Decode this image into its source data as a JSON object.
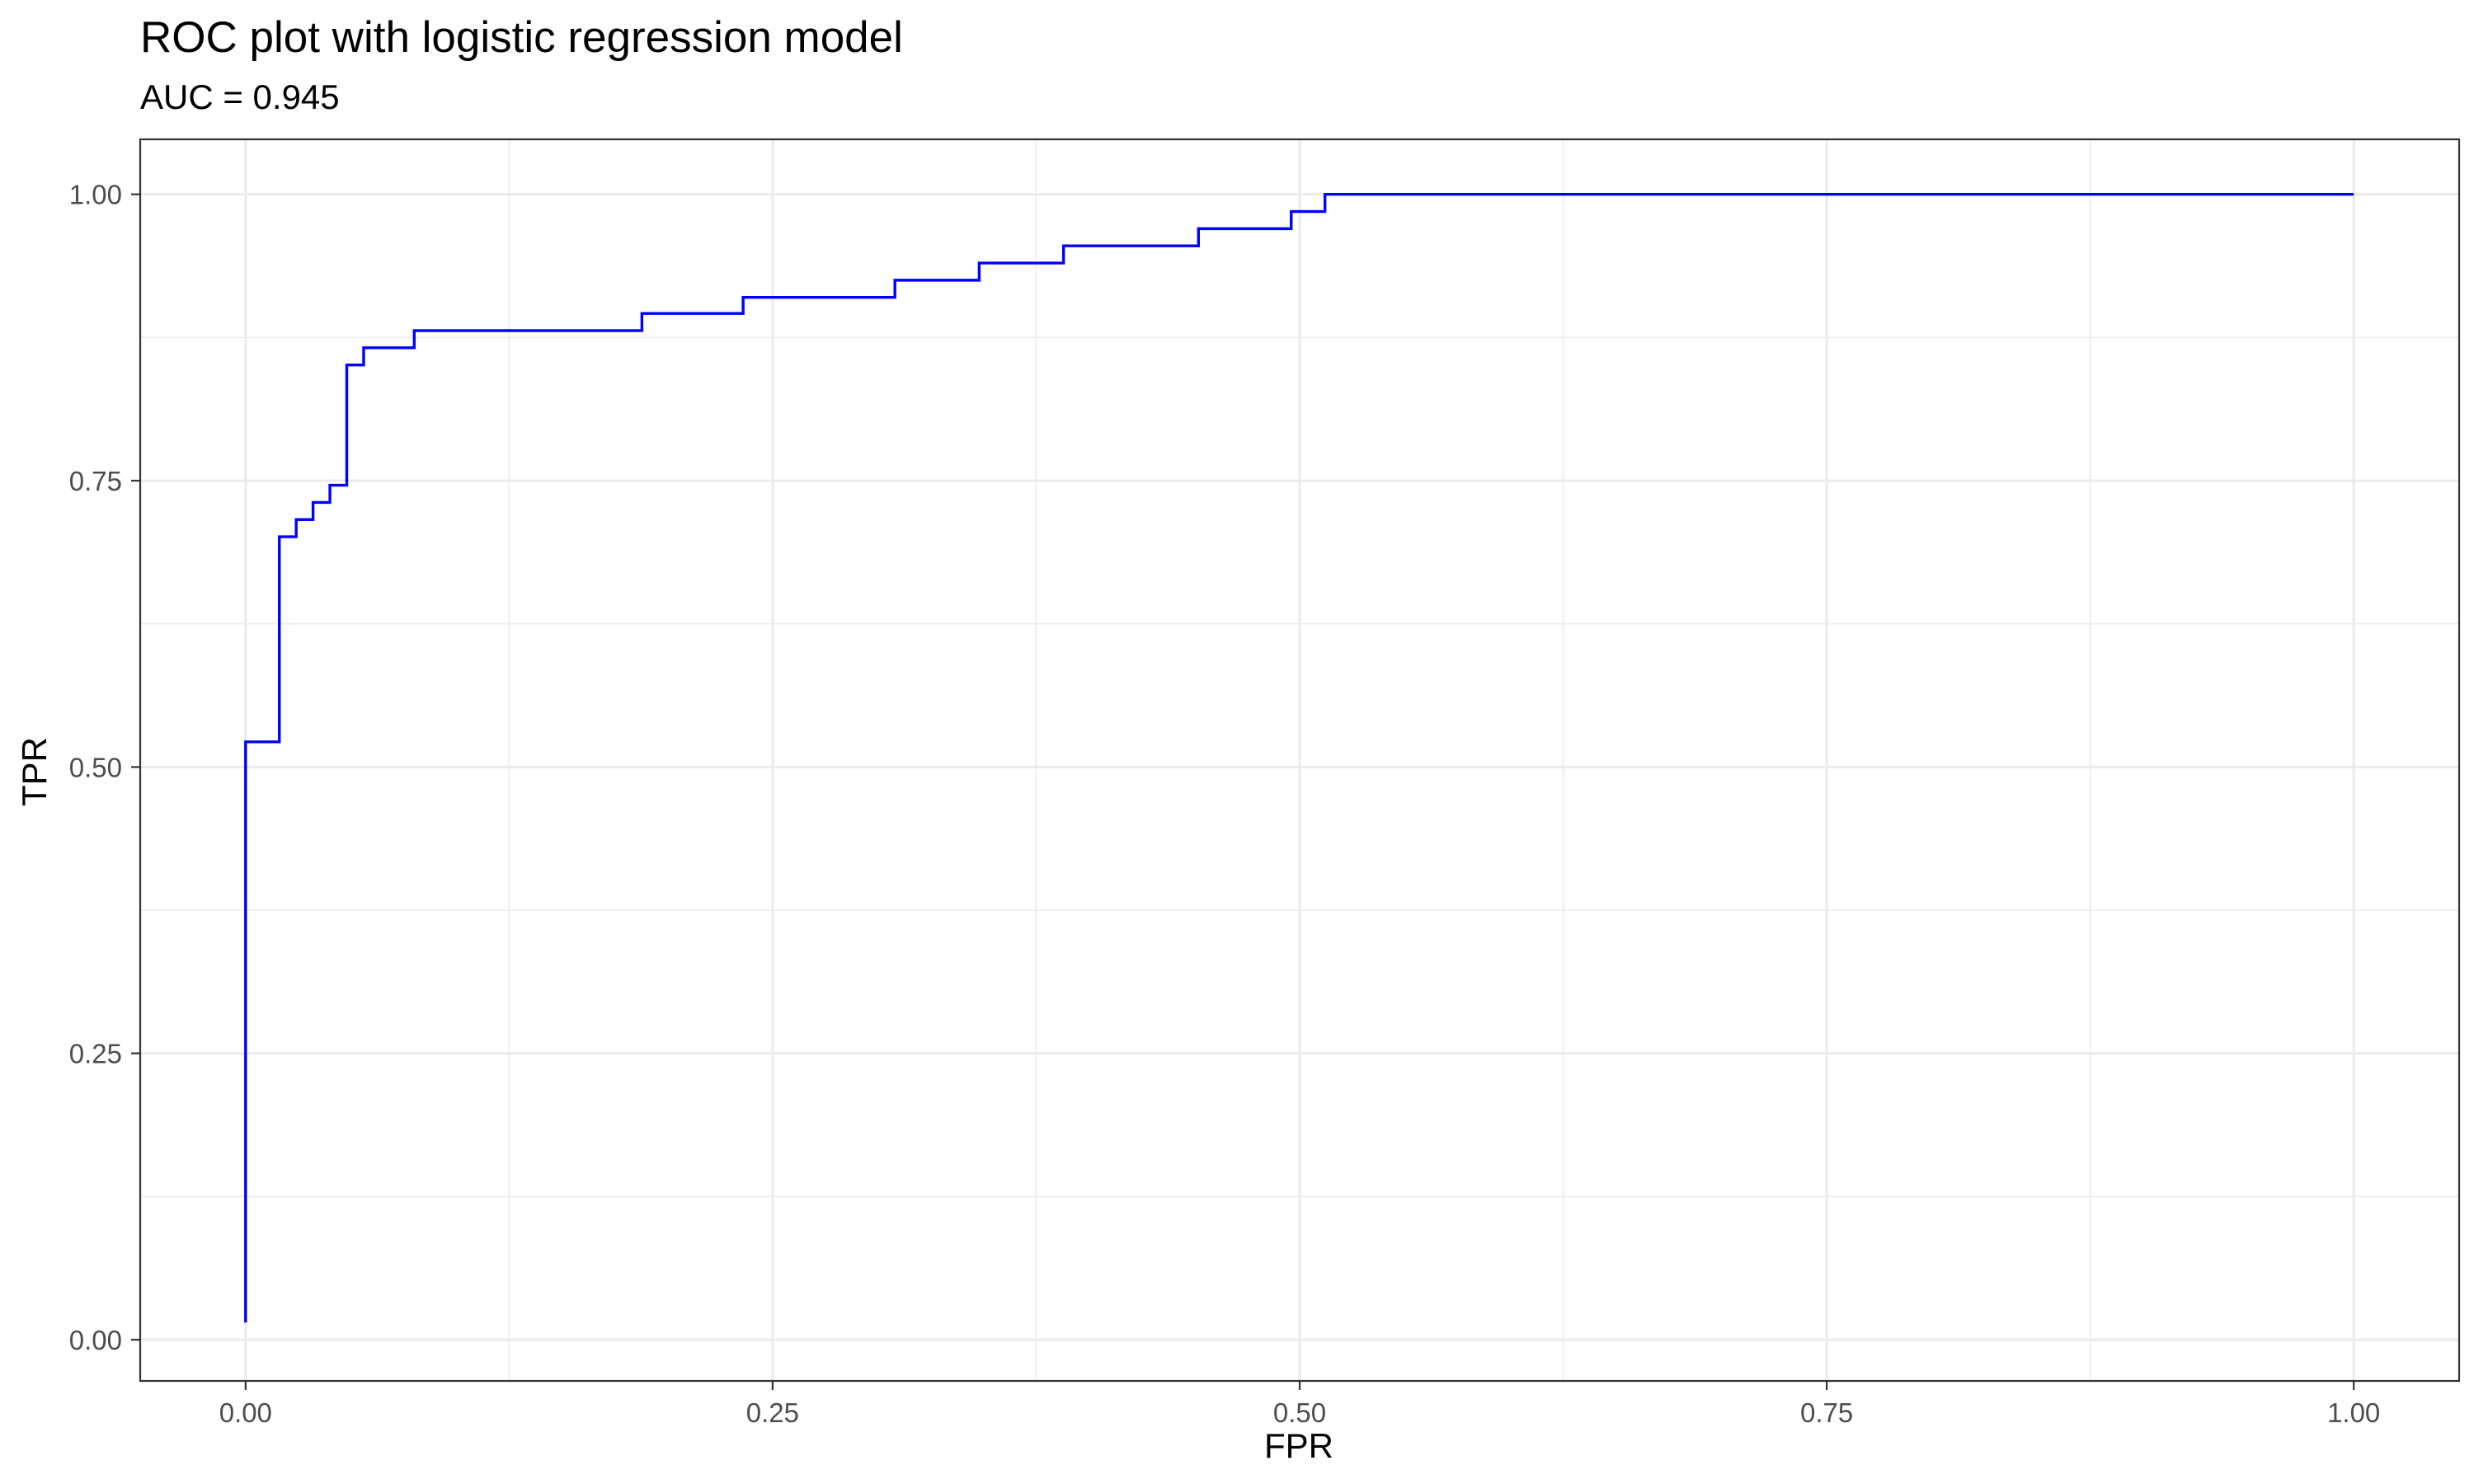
{
  "chart_data": {
    "type": "line",
    "title": "ROC plot with logistic regression model",
    "subtitle": "AUC = 0.945",
    "xlabel": "FPR",
    "ylabel": "TPR",
    "xlim": [
      -0.05,
      1.05
    ],
    "ylim": [
      -0.036,
      1.048
    ],
    "xticks": [
      0,
      0.25,
      0.5,
      0.75,
      1
    ],
    "xtick_labels": [
      "0.00",
      "0.25",
      "0.50",
      "0.75",
      "1.00"
    ],
    "yticks": [
      0,
      0.25,
      0.5,
      0.75,
      1
    ],
    "ytick_labels": [
      "0.00",
      "0.25",
      "0.50",
      "0.75",
      "1.00"
    ],
    "grid": true,
    "series": [
      {
        "step": "hv",
        "color": "#0000ff",
        "x": [
          0,
          0,
          0.016,
          0.016,
          0.024,
          0.032,
          0.04,
          0.048,
          0.056,
          0.08,
          0.188,
          0.236,
          0.308,
          0.348,
          0.388,
          0.452,
          0.496,
          0.512,
          1.0
        ],
        "y": [
          0.015,
          0.522,
          0.522,
          0.701,
          0.716,
          0.731,
          0.746,
          0.851,
          0.866,
          0.881,
          0.896,
          0.91,
          0.925,
          0.94,
          0.955,
          0.97,
          0.985,
          1.0,
          1.0
        ]
      }
    ]
  }
}
